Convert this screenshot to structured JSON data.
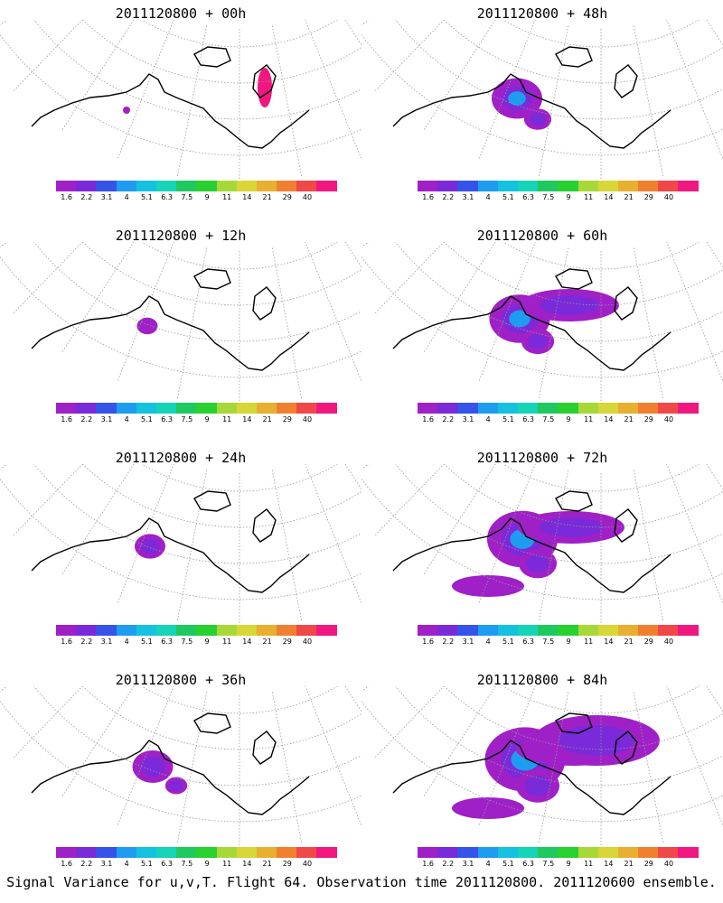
{
  "colorbar": {
    "labels": [
      "1.6",
      "2.2",
      "3.1",
      "4",
      "5.1",
      "6.3",
      "7.5",
      "9",
      "11",
      "14",
      "21",
      "29",
      "40"
    ],
    "colors": [
      "#a020c8",
      "#7a2ad8",
      "#3553e8",
      "#1e9cf0",
      "#14c2e0",
      "#16d4b8",
      "#20c860",
      "#28d030",
      "#a8d838",
      "#d8d638",
      "#e8b030",
      "#f08030",
      "#f04848",
      "#f01880"
    ]
  },
  "panels": [
    {
      "title": "2011120800 + 00h",
      "level": 0
    },
    {
      "title": "2011120800 + 48h",
      "level": 4
    },
    {
      "title": "2011120800 + 12h",
      "level": 1
    },
    {
      "title": "2011120800 + 60h",
      "level": 5
    },
    {
      "title": "2011120800 + 24h",
      "level": 2
    },
    {
      "title": "2011120800 + 72h",
      "level": 6
    },
    {
      "title": "2011120800 + 36h",
      "level": 3
    },
    {
      "title": "2011120800 + 84h",
      "level": 7
    }
  ],
  "footer": "Signal Variance for u,v,T. Flight 64. Observation time 2011120800. 2011120600 ensemble."
}
